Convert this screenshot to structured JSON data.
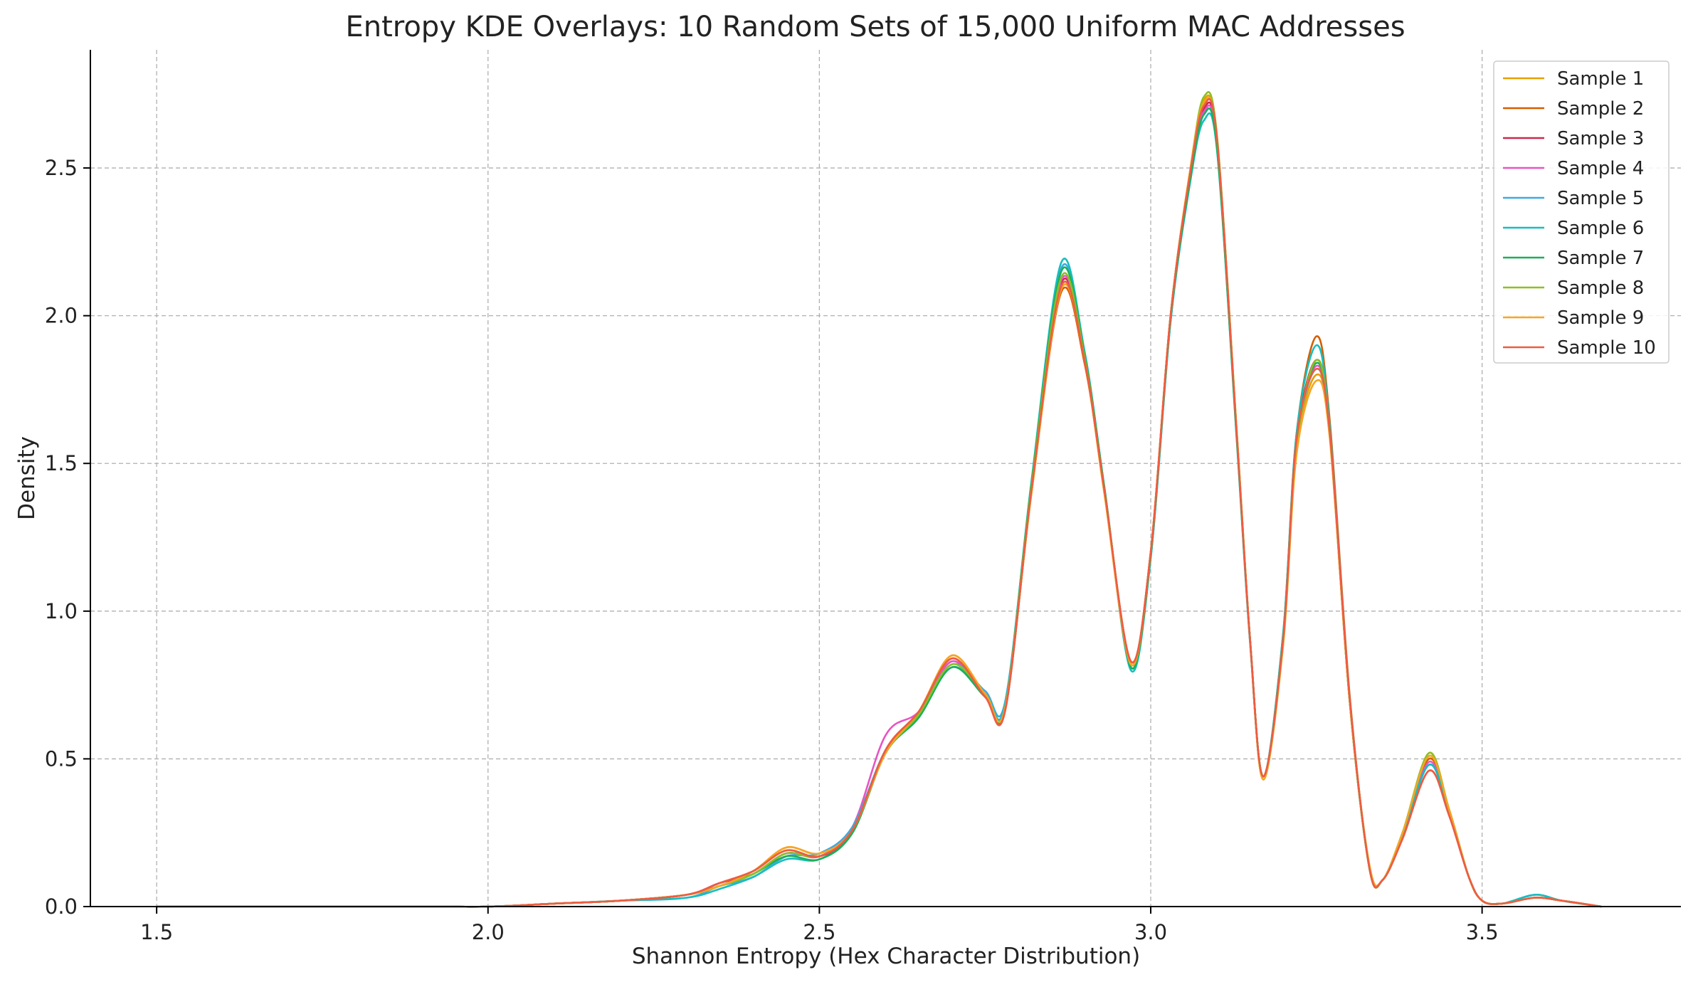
{
  "chart_data": {
    "type": "line",
    "title": "Entropy KDE Overlays: 10 Random Sets of 15,000 Uniform MAC Addresses",
    "xlabel": "Shannon Entropy (Hex Character Distribution)",
    "ylabel": "Density",
    "xlim": [
      1.4,
      3.8
    ],
    "ylim": [
      0,
      2.9
    ],
    "xticks": [
      "1.5",
      "2.0",
      "2.5",
      "3.0",
      "3.5"
    ],
    "yticks": [
      "0.0",
      "0.5",
      "1.0",
      "1.5",
      "2.0",
      "2.5"
    ],
    "grid": true,
    "legend_position": "top-right",
    "x": [
      1.5,
      1.9,
      2.0,
      2.1,
      2.2,
      2.3,
      2.35,
      2.4,
      2.45,
      2.5,
      2.55,
      2.6,
      2.65,
      2.7,
      2.75,
      2.78,
      2.82,
      2.865,
      2.9,
      2.93,
      2.97,
      3.0,
      3.03,
      3.06,
      3.08,
      3.1,
      3.13,
      3.15,
      3.17,
      3.2,
      3.22,
      3.25,
      3.27,
      3.3,
      3.33,
      3.35,
      3.38,
      3.42,
      3.45,
      3.48,
      3.5,
      3.53,
      3.58,
      3.62,
      3.68
    ],
    "series": [
      {
        "name": "Sample 1",
        "color": "#E69F00",
        "values": [
          0,
          0,
          0,
          0.01,
          0.02,
          0.04,
          0.07,
          0.12,
          0.2,
          0.18,
          0.26,
          0.52,
          0.66,
          0.85,
          0.72,
          0.67,
          1.4,
          2.1,
          1.85,
          1.4,
          0.82,
          1.2,
          2.0,
          2.5,
          2.73,
          2.6,
          1.6,
          0.9,
          0.43,
          0.9,
          1.55,
          1.8,
          1.6,
          0.7,
          0.14,
          0.09,
          0.25,
          0.52,
          0.33,
          0.1,
          0.02,
          0.01,
          0.03,
          0.02,
          0
        ]
      },
      {
        "name": "Sample 2",
        "color": "#D55E00",
        "values": [
          0,
          0,
          0,
          0.01,
          0.02,
          0.04,
          0.08,
          0.12,
          0.19,
          0.17,
          0.25,
          0.53,
          0.66,
          0.84,
          0.71,
          0.66,
          1.4,
          2.08,
          1.84,
          1.41,
          0.83,
          1.2,
          2.0,
          2.48,
          2.71,
          2.6,
          1.58,
          0.9,
          0.44,
          0.93,
          1.6,
          1.93,
          1.65,
          0.72,
          0.13,
          0.09,
          0.24,
          0.5,
          0.33,
          0.1,
          0.02,
          0.01,
          0.03,
          0.02,
          0
        ]
      },
      {
        "name": "Sample 3",
        "color": "#CC2952",
        "values": [
          0,
          0,
          0,
          0.01,
          0.02,
          0.04,
          0.08,
          0.11,
          0.18,
          0.17,
          0.25,
          0.53,
          0.65,
          0.83,
          0.71,
          0.66,
          1.41,
          2.11,
          1.86,
          1.41,
          0.83,
          1.19,
          2.0,
          2.49,
          2.7,
          2.59,
          1.59,
          0.9,
          0.44,
          0.92,
          1.58,
          1.85,
          1.62,
          0.71,
          0.13,
          0.09,
          0.23,
          0.46,
          0.31,
          0.1,
          0.02,
          0.01,
          0.03,
          0.02,
          0
        ]
      },
      {
        "name": "Sample 4",
        "color": "#E754C4",
        "values": [
          0,
          0,
          0,
          0.01,
          0.02,
          0.04,
          0.07,
          0.11,
          0.18,
          0.17,
          0.27,
          0.58,
          0.66,
          0.83,
          0.72,
          0.68,
          1.42,
          2.12,
          1.86,
          1.41,
          0.82,
          1.19,
          1.99,
          2.48,
          2.69,
          2.58,
          1.58,
          0.89,
          0.44,
          0.91,
          1.57,
          1.83,
          1.61,
          0.7,
          0.13,
          0.09,
          0.24,
          0.49,
          0.32,
          0.1,
          0.02,
          0.01,
          0.03,
          0.02,
          0
        ]
      },
      {
        "name": "Sample 5",
        "color": "#3FA9E0",
        "values": [
          0,
          0,
          0,
          0.01,
          0.02,
          0.03,
          0.07,
          0.1,
          0.17,
          0.18,
          0.27,
          0.53,
          0.65,
          0.82,
          0.73,
          0.69,
          1.43,
          2.16,
          1.88,
          1.42,
          0.81,
          1.18,
          1.98,
          2.46,
          2.68,
          2.57,
          1.58,
          0.9,
          0.44,
          0.92,
          1.57,
          1.82,
          1.6,
          0.7,
          0.13,
          0.09,
          0.24,
          0.48,
          0.32,
          0.1,
          0.02,
          0.01,
          0.04,
          0.02,
          0
        ]
      },
      {
        "name": "Sample 6",
        "color": "#17BEBE",
        "values": [
          0,
          0,
          0,
          0.01,
          0.02,
          0.03,
          0.06,
          0.1,
          0.16,
          0.16,
          0.25,
          0.52,
          0.64,
          0.81,
          0.72,
          0.68,
          1.44,
          2.18,
          1.88,
          1.42,
          0.8,
          1.18,
          1.98,
          2.46,
          2.66,
          2.56,
          1.57,
          0.89,
          0.44,
          0.93,
          1.6,
          1.9,
          1.63,
          0.71,
          0.13,
          0.09,
          0.24,
          0.48,
          0.32,
          0.1,
          0.02,
          0.01,
          0.04,
          0.02,
          0
        ]
      },
      {
        "name": "Sample 7",
        "color": "#1BAF5A",
        "values": [
          0,
          0,
          0,
          0.01,
          0.02,
          0.04,
          0.07,
          0.11,
          0.17,
          0.16,
          0.25,
          0.52,
          0.64,
          0.81,
          0.71,
          0.67,
          1.43,
          2.15,
          1.87,
          1.42,
          0.81,
          1.19,
          1.99,
          2.47,
          2.68,
          2.57,
          1.58,
          0.9,
          0.44,
          0.91,
          1.57,
          1.84,
          1.61,
          0.7,
          0.13,
          0.09,
          0.25,
          0.51,
          0.33,
          0.1,
          0.02,
          0.01,
          0.03,
          0.02,
          0
        ]
      },
      {
        "name": "Sample 8",
        "color": "#8DBF25",
        "values": [
          0,
          0,
          0,
          0.01,
          0.02,
          0.04,
          0.07,
          0.11,
          0.18,
          0.17,
          0.26,
          0.52,
          0.65,
          0.82,
          0.72,
          0.67,
          1.42,
          2.13,
          1.86,
          1.41,
          0.82,
          1.2,
          2.0,
          2.5,
          2.74,
          2.61,
          1.6,
          0.9,
          0.43,
          0.9,
          1.56,
          1.85,
          1.61,
          0.7,
          0.13,
          0.09,
          0.25,
          0.52,
          0.33,
          0.1,
          0.02,
          0.01,
          0.03,
          0.02,
          0
        ]
      },
      {
        "name": "Sample 9",
        "color": "#F5A623",
        "values": [
          0,
          0,
          0,
          0.01,
          0.02,
          0.04,
          0.07,
          0.12,
          0.2,
          0.18,
          0.26,
          0.52,
          0.66,
          0.85,
          0.72,
          0.67,
          1.4,
          2.09,
          1.85,
          1.4,
          0.82,
          1.2,
          2.0,
          2.5,
          2.72,
          2.6,
          1.6,
          0.9,
          0.43,
          0.89,
          1.53,
          1.78,
          1.59,
          0.7,
          0.14,
          0.09,
          0.25,
          0.51,
          0.33,
          0.1,
          0.02,
          0.01,
          0.03,
          0.02,
          0
        ]
      },
      {
        "name": "Sample 10",
        "color": "#EE5C42",
        "values": [
          0,
          0,
          0,
          0.01,
          0.02,
          0.04,
          0.08,
          0.12,
          0.19,
          0.17,
          0.26,
          0.53,
          0.66,
          0.84,
          0.71,
          0.66,
          1.41,
          2.1,
          1.85,
          1.41,
          0.83,
          1.2,
          2.0,
          2.49,
          2.71,
          2.6,
          1.59,
          0.9,
          0.44,
          0.91,
          1.58,
          1.82,
          1.61,
          0.71,
          0.13,
          0.09,
          0.23,
          0.46,
          0.31,
          0.1,
          0.02,
          0.01,
          0.03,
          0.02,
          0
        ]
      }
    ]
  }
}
